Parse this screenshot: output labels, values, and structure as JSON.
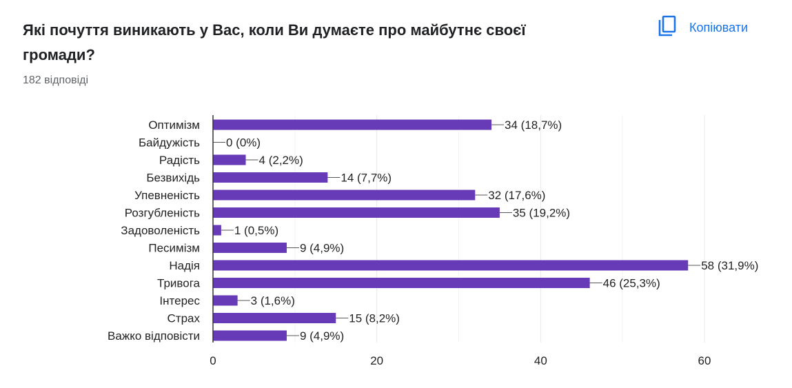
{
  "header": {
    "title": "Які почуття виникають у Вас, коли Ви думаєте про майбутнє своєї громади?",
    "responses": "182 відповіді",
    "copy_label": "Копіювати",
    "copy_icon": "copy-icon"
  },
  "colors": {
    "bar": "#673ab7",
    "grid": "#e8e8e8",
    "axis": "#333333",
    "text": "#222222",
    "accent": "#1a73e8"
  },
  "chart_data": {
    "type": "bar",
    "orientation": "horizontal",
    "categories": [
      "Оптимізм",
      "Байдужість",
      "Радість",
      "Безвихідь",
      "Упевненість",
      "Розгубленість",
      "Задоволеність",
      "Песимізм",
      "Надія",
      "Тривога",
      "Інтерес",
      "Страх",
      "Важко відповісти"
    ],
    "values": [
      34,
      0,
      4,
      14,
      32,
      35,
      1,
      9,
      58,
      46,
      3,
      15,
      9
    ],
    "data_labels": [
      "34 (18,7%)",
      "0 (0%)",
      "4 (2,2%)",
      "14 (7,7%)",
      "32 (17,6%)",
      "35 (19,2%)",
      "1 (0,5%)",
      "9 (4,9%)",
      "58 (31,9%)",
      "46 (25,3%)",
      "3 (1,6%)",
      "15 (8,2%)",
      "9 (4,9%)"
    ],
    "xlim": [
      0,
      60
    ],
    "xticks": [
      0,
      20,
      40,
      60
    ],
    "xtick_labels": [
      "0",
      "20",
      "40",
      "60"
    ],
    "grid": true,
    "legend": "none"
  }
}
